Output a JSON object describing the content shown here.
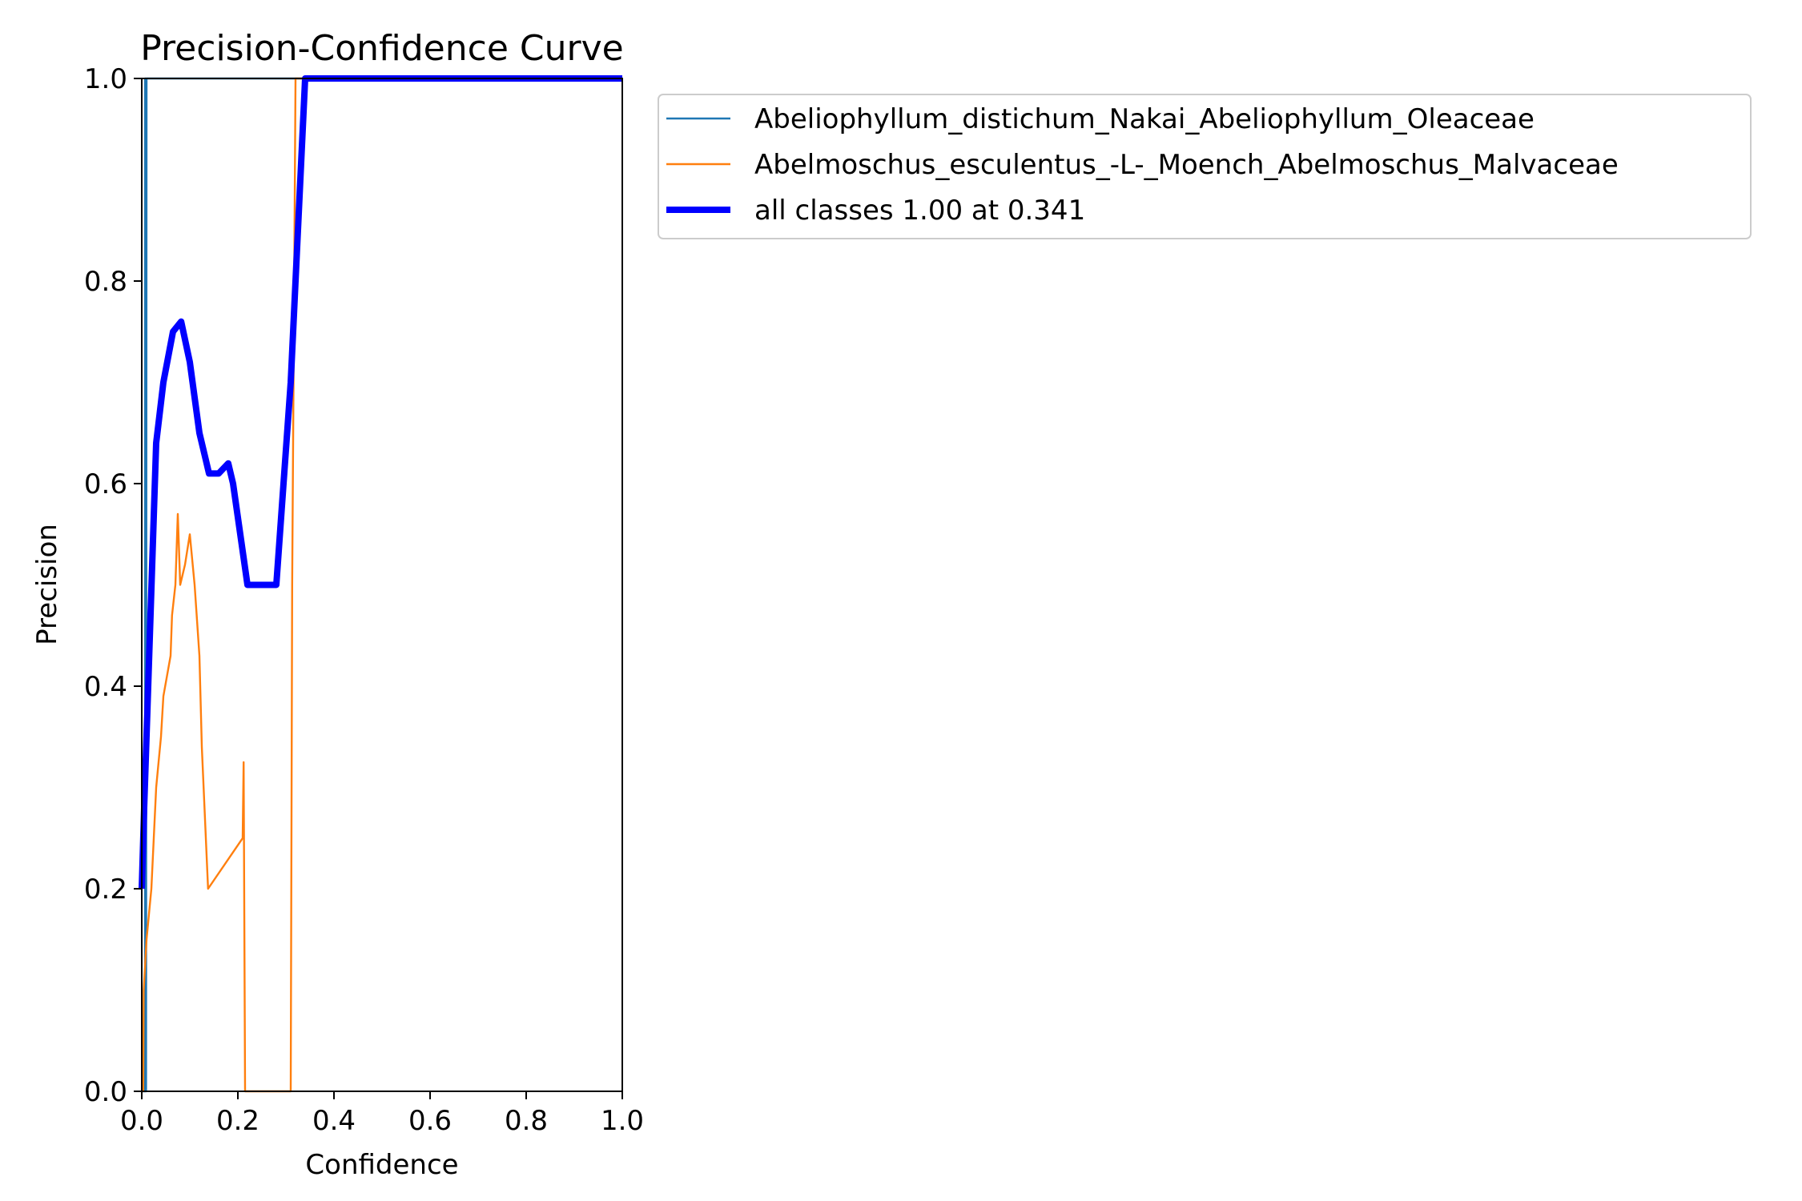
{
  "chart_data": {
    "type": "line",
    "title": "Precision-Confidence Curve",
    "xlabel": "Confidence",
    "ylabel": "Precision",
    "xlim": [
      0,
      1
    ],
    "ylim": [
      0,
      1
    ],
    "x_ticks": [
      "0.0",
      "0.2",
      "0.4",
      "0.6",
      "0.8",
      "1.0"
    ],
    "y_ticks": [
      "0.0",
      "0.2",
      "0.4",
      "0.6",
      "0.8",
      "1.0"
    ],
    "grid": false,
    "legend_position": "outside upper right",
    "series": [
      {
        "name": "Abeliophyllum_distichum_Nakai_Abeliophyllum_Oleaceae",
        "color": "#1f77b4",
        "width": "thin",
        "points": [
          [
            0.0,
            0.0
          ],
          [
            0.007,
            0.0
          ],
          [
            0.007,
            1.0
          ],
          [
            0.008,
            1.0
          ],
          [
            0.008,
            0.0
          ],
          [
            0.009,
            0.0
          ],
          [
            0.01,
            1.0
          ],
          [
            1.0,
            1.0
          ]
        ]
      },
      {
        "name": "Abelmoschus_esculentus_-L-_Moench_Abelmoschus_Malvaceae",
        "color": "#ff7f0e",
        "width": "thin",
        "points": [
          [
            0.0,
            0.0
          ],
          [
            0.003,
            0.0
          ],
          [
            0.004,
            0.1
          ],
          [
            0.01,
            0.15
          ],
          [
            0.02,
            0.2
          ],
          [
            0.025,
            0.25
          ],
          [
            0.03,
            0.3
          ],
          [
            0.04,
            0.35
          ],
          [
            0.045,
            0.39
          ],
          [
            0.06,
            0.43
          ],
          [
            0.063,
            0.47
          ],
          [
            0.07,
            0.5
          ],
          [
            0.075,
            0.57
          ],
          [
            0.08,
            0.5
          ],
          [
            0.09,
            0.52
          ],
          [
            0.1,
            0.55
          ],
          [
            0.11,
            0.5
          ],
          [
            0.12,
            0.43
          ],
          [
            0.125,
            0.34
          ],
          [
            0.138,
            0.2
          ],
          [
            0.21,
            0.25
          ],
          [
            0.212,
            0.325
          ],
          [
            0.215,
            0.0
          ],
          [
            0.31,
            0.0
          ],
          [
            0.313,
            0.5
          ],
          [
            0.32,
            1.0
          ],
          [
            1.0,
            1.0
          ]
        ]
      },
      {
        "name": "all classes 1.00 at 0.341",
        "color": "#0000ff",
        "width": "thick",
        "points": [
          [
            0.0,
            0.2
          ],
          [
            0.005,
            0.28
          ],
          [
            0.012,
            0.38
          ],
          [
            0.03,
            0.64
          ],
          [
            0.045,
            0.7
          ],
          [
            0.065,
            0.75
          ],
          [
            0.082,
            0.76
          ],
          [
            0.1,
            0.72
          ],
          [
            0.12,
            0.65
          ],
          [
            0.14,
            0.61
          ],
          [
            0.16,
            0.61
          ],
          [
            0.18,
            0.62
          ],
          [
            0.19,
            0.6
          ],
          [
            0.22,
            0.5
          ],
          [
            0.24,
            0.5
          ],
          [
            0.28,
            0.5
          ],
          [
            0.31,
            0.7
          ],
          [
            0.34,
            1.0
          ],
          [
            1.0,
            1.0
          ]
        ]
      }
    ]
  }
}
